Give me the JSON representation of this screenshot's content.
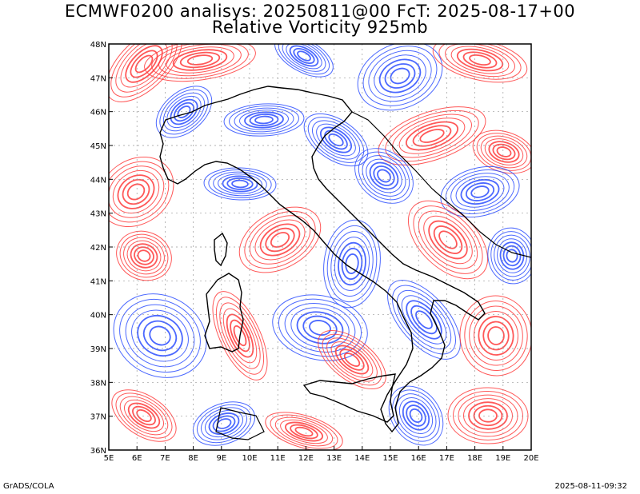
{
  "title_line1": "ECMWF0200 analisys: 20250811@00 FcT: 2025-08-17+00",
  "title_line2": "Relative Vorticity 925mb",
  "footer_left": "GrADS/COLA",
  "footer_right": "2025-08-11-09:32",
  "lat_labels": [
    "48N",
    "47N",
    "46N",
    "45N",
    "44N",
    "43N",
    "42N",
    "41N",
    "40N",
    "39N",
    "38N",
    "37N",
    "36N"
  ],
  "lon_labels": [
    "5E",
    "6E",
    "7E",
    "8E",
    "9E",
    "10E",
    "11E",
    "12E",
    "13E",
    "14E",
    "15E",
    "16E",
    "17E",
    "18E",
    "19E",
    "20E"
  ],
  "map_extent": {
    "lon_min": 5,
    "lon_max": 20,
    "lat_min": 36,
    "lat_max": 48
  },
  "colors": {
    "positive_vorticity": "#ff3b3b",
    "negative_vorticity": "#2b4dff",
    "coastline": "#000000",
    "grid": "#999999"
  }
}
